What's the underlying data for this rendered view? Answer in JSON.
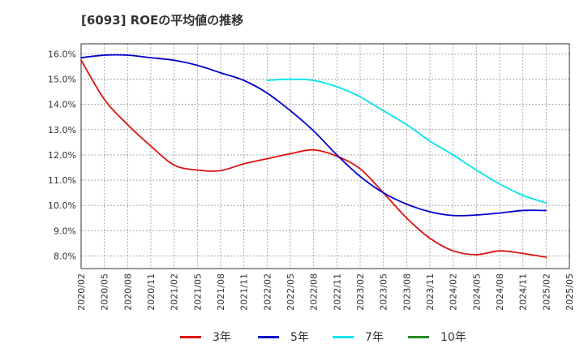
{
  "chart_data": {
    "type": "line",
    "title": "[6093]  ROEの平均値の推移",
    "xlabel": "",
    "ylabel": "",
    "ylim": [
      7.5,
      16.4
    ],
    "y_ticks": [
      "8.0%",
      "9.0%",
      "10.0%",
      "11.0%",
      "12.0%",
      "13.0%",
      "14.0%",
      "15.0%",
      "16.0%"
    ],
    "y_tick_values": [
      8,
      9,
      10,
      11,
      12,
      13,
      14,
      15,
      16
    ],
    "x": [
      "2020/02",
      "2020/05",
      "2020/08",
      "2020/11",
      "2021/02",
      "2021/05",
      "2021/08",
      "2021/11",
      "2022/02",
      "2022/05",
      "2022/08",
      "2022/11",
      "2023/02",
      "2023/05",
      "2023/08",
      "2023/11",
      "2024/02",
      "2024/05",
      "2024/08",
      "2024/11",
      "2025/02",
      "2025/05"
    ],
    "grid": true,
    "legend_position": "bottom",
    "series": [
      {
        "name": "3年",
        "color": "#dd1111",
        "values": [
          15.75,
          14.2,
          13.2,
          12.35,
          11.6,
          11.4,
          11.38,
          11.65,
          11.85,
          12.05,
          12.2,
          11.95,
          11.45,
          10.5,
          9.5,
          8.7,
          8.2,
          8.05,
          8.2,
          8.1,
          7.95,
          null
        ]
      },
      {
        "name": "5年",
        "color": "#0000cc",
        "values": [
          15.85,
          15.95,
          15.95,
          15.85,
          15.75,
          15.55,
          15.25,
          14.95,
          14.45,
          13.75,
          12.95,
          12.0,
          11.15,
          10.5,
          10.05,
          9.75,
          9.6,
          9.62,
          9.7,
          9.8,
          9.8,
          null
        ]
      },
      {
        "name": "7年",
        "color": "#00e5ee",
        "values": [
          null,
          null,
          null,
          null,
          null,
          null,
          null,
          null,
          14.95,
          15.0,
          14.95,
          14.7,
          14.3,
          13.75,
          13.2,
          12.55,
          12.0,
          11.4,
          10.85,
          10.4,
          10.1,
          null
        ]
      },
      {
        "name": "10年",
        "color": "#228b22",
        "values": [
          null,
          null,
          null,
          null,
          null,
          null,
          null,
          null,
          null,
          null,
          null,
          null,
          null,
          null,
          null,
          null,
          null,
          null,
          null,
          null,
          null,
          null
        ]
      }
    ]
  }
}
